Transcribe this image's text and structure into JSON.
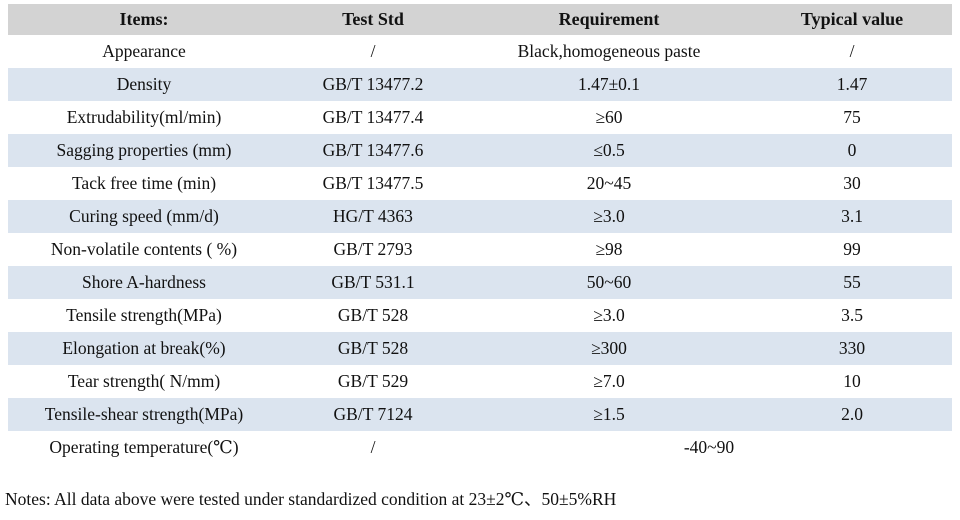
{
  "colors": {
    "header_bg": "#d3d3d3",
    "alt_row_bg": "#dbe4ef",
    "row_bg": "#ffffff",
    "text": "#111111"
  },
  "table": {
    "columns": [
      "Items:",
      "Test Std",
      "Requirement",
      "Typical value"
    ],
    "rows": [
      {
        "item": "Appearance",
        "std": "/",
        "req": "Black,homogeneous paste",
        "typ": "/"
      },
      {
        "item": "Density",
        "std": "GB/T 13477.2",
        "req": "1.47±0.1",
        "typ": "1.47"
      },
      {
        "item": "Extrudability(ml/min)",
        "std": "GB/T 13477.4",
        "req": "≥60",
        "typ": "75"
      },
      {
        "item": "Sagging properties (mm)",
        "std": "GB/T 13477.6",
        "req": "≤0.5",
        "typ": "0"
      },
      {
        "item": "Tack free time (min)",
        "std": "GB/T 13477.5",
        "req": "20~45",
        "typ": "30"
      },
      {
        "item": "Curing speed (mm/d)",
        "std": "HG/T 4363",
        "req": "≥3.0",
        "typ": "3.1"
      },
      {
        "item": "Non-volatile contents ( %)",
        "std": "GB/T 2793",
        "req": "≥98",
        "typ": "99"
      },
      {
        "item": "Shore A-hardness",
        "std": "GB/T 531.1",
        "req": "50~60",
        "typ": "55"
      },
      {
        "item": "Tensile strength(MPa)",
        "std": "GB/T 528",
        "req": "≥3.0",
        "typ": "3.5"
      },
      {
        "item": "Elongation at break(%)",
        "std": "GB/T 528",
        "req": "≥300",
        "typ": "330"
      },
      {
        "item": "Tear strength( N/mm)",
        "std": "GB/T 529",
        "req": "≥7.0",
        "typ": "10"
      },
      {
        "item": "Tensile-shear strength(MPa)",
        "std": "GB/T 7124",
        "req": "≥1.5",
        "typ": "2.0"
      },
      {
        "item": "Operating temperature(℃)",
        "std": "/",
        "req": "-40~90",
        "typ": null,
        "merge": true
      }
    ]
  },
  "notes": "Notes: All data above were tested under standardized condition at 23±2℃、50±5%RH"
}
